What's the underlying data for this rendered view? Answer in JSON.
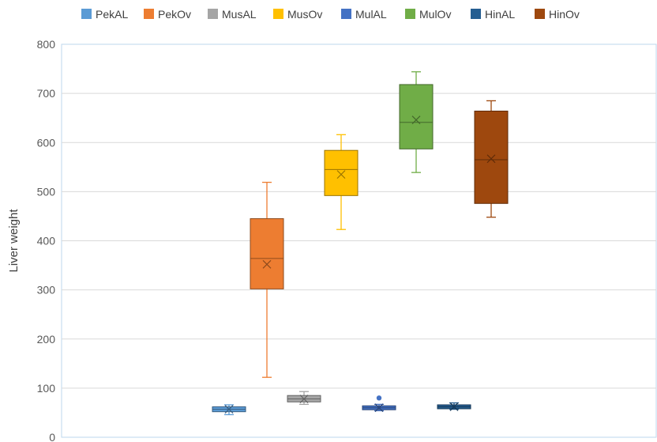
{
  "chart_data": {
    "type": "box",
    "ylabel": "Liver weight",
    "ylim": [
      0,
      800
    ],
    "y_ticks": [
      "0",
      "100",
      "200",
      "300",
      "400",
      "500",
      "600",
      "700",
      "800"
    ],
    "grid": true,
    "legend_position": "top",
    "series": [
      {
        "name": "PekAL",
        "color": "#5B9BD5",
        "min": 46,
        "q1": 52,
        "median": 57,
        "q3": 62,
        "max": 66,
        "mean": 57,
        "outliers": []
      },
      {
        "name": "PekOv",
        "color": "#ED7D31",
        "min": 122,
        "q1": 302,
        "median": 364,
        "q3": 445,
        "max": 519,
        "mean": 352,
        "outliers": []
      },
      {
        "name": "MusAL",
        "color": "#A5A5A5",
        "min": 67,
        "q1": 72,
        "median": 78,
        "q3": 85,
        "max": 93,
        "mean": 78,
        "outliers": []
      },
      {
        "name": "MusOv",
        "color": "#FFC000",
        "min": 423,
        "q1": 492,
        "median": 545,
        "q3": 584,
        "max": 616,
        "mean": 535,
        "outliers": []
      },
      {
        "name": "MulAL",
        "color": "#4472C4",
        "min": 54,
        "q1": 56,
        "median": 60,
        "q3": 64,
        "max": 67,
        "mean": 60,
        "outliers": [
          80
        ]
      },
      {
        "name": "MulOv",
        "color": "#70AD47",
        "min": 539,
        "q1": 587,
        "median": 641,
        "q3": 718,
        "max": 744,
        "mean": 646,
        "outliers": []
      },
      {
        "name": "HinAL",
        "color": "#255E91",
        "min": 57,
        "q1": 58,
        "median": 62,
        "q3": 66,
        "max": 70,
        "mean": 62,
        "outliers": []
      },
      {
        "name": "HinOv",
        "color": "#9E480E",
        "min": 448,
        "q1": 476,
        "median": 565,
        "q3": 664,
        "max": 685,
        "mean": 567,
        "outliers": []
      }
    ]
  }
}
